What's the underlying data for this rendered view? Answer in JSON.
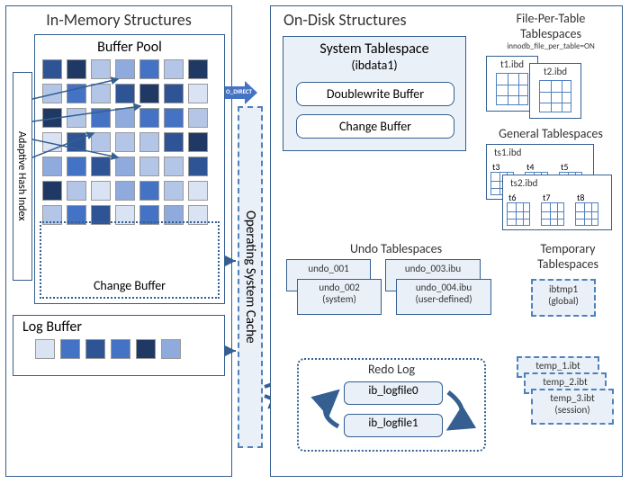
{
  "inmem": {
    "title": "In-Memory Structures",
    "bufferPool": "Buffer Pool",
    "adaptiveHash": "Adaptive Hash Index",
    "changeBuffer": "Change Buffer",
    "logBuffer": "Log Buffer"
  },
  "ondisk": {
    "title": "On-Disk Structures",
    "sysTablespace": "System Tablespace",
    "ibdata": "(ibdata1)",
    "doublewrite": "Doublewrite Buffer",
    "changeBuffer": "Change Buffer",
    "undo": {
      "title": "Undo Tablespaces",
      "u1": "undo_001",
      "u2": "undo_002",
      "u2sub": "(system)",
      "u3": "undo_003.ibu",
      "u4": "undo_004.ibu",
      "u4sub": "(user-defined)"
    },
    "redo": {
      "title": "Redo Log",
      "f0": "ib_logfile0",
      "f1": "ib_logfile1"
    },
    "fpt": {
      "title": "File-Per-Table",
      "sub": "Tablespaces",
      "opt": "innodb_file_per_table=ON",
      "t1": "t1.ibd",
      "t2": "t2.ibd"
    },
    "gen": {
      "title": "General Tablespaces",
      "ts1": "ts1.ibd",
      "ts2": "ts2.ibd",
      "t3": "t3",
      "t4": "t4",
      "t5": "t5",
      "t6": "t6",
      "t7": "t7",
      "t8": "t8"
    },
    "temp": {
      "title": "Temporary",
      "sub": "Tablespaces",
      "g": "ibtmp1",
      "gsub": "(global)",
      "s1": "temp_1.ibt",
      "s2": "temp_2.ibt",
      "s3": "temp_3.ibt",
      "ssub": "(session)"
    }
  },
  "osCache": "Operating System Cache",
  "oDirect": "O_DIRECT",
  "colors": {
    "c1": "#1f3864",
    "c2": "#2e5496",
    "c3": "#4472c4",
    "c4": "#8faadc",
    "c5": "#b4c6e7",
    "c6": "#dae3f3",
    "panel": "#eaf0f8",
    "border": "#355f91",
    "dash": "#4f81bd"
  },
  "poolGrid": [
    [
      "c2",
      "c1",
      "c5",
      "c4",
      "c3",
      "c5",
      "c1"
    ],
    [
      "c5",
      "c3",
      "c5",
      "c2",
      "c1",
      "c2",
      "c6"
    ],
    [
      "c1",
      "c5",
      "c3",
      "c4",
      "c3",
      "c3",
      "c5"
    ],
    [
      "c6",
      "c2",
      "c5",
      "c5",
      "c5",
      "c2",
      "c1"
    ],
    [
      "c4",
      "c3",
      "c2",
      "c4",
      "c5",
      "c5",
      "c2"
    ],
    [
      "c1",
      "c5",
      "c6",
      "c4",
      "c3",
      "c5",
      "c6"
    ],
    [
      "c5",
      "c3",
      "c2",
      "c6",
      "c3",
      "c4",
      "c6"
    ]
  ],
  "logCells": [
    "c6",
    "c3",
    "c2",
    "c3",
    "c1",
    "c4"
  ]
}
